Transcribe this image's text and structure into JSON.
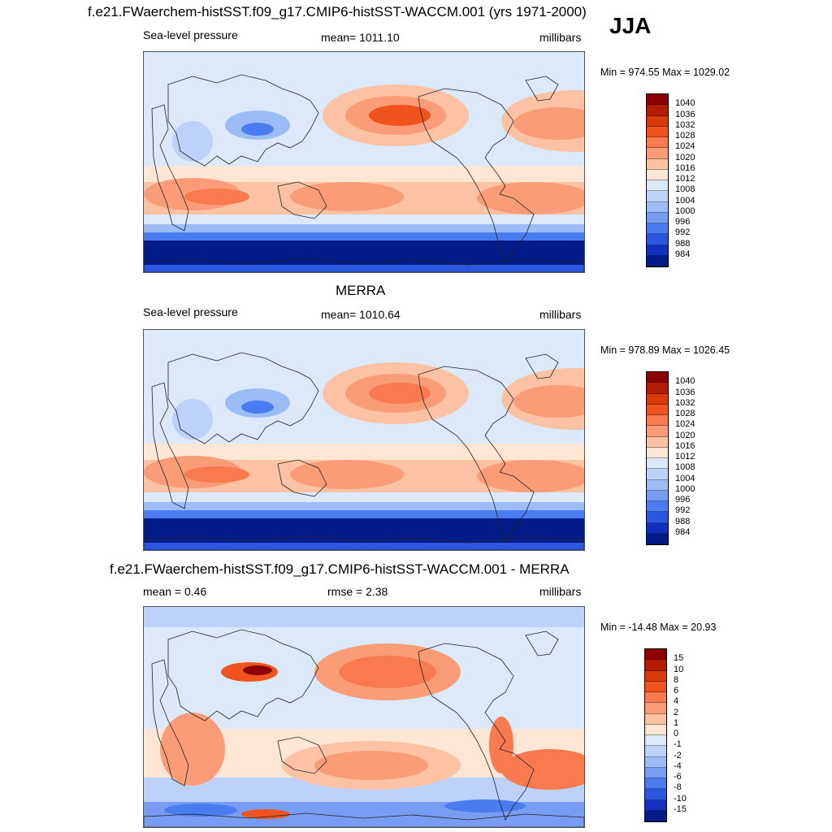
{
  "header": {
    "title": "f.e21.FWaerchem-histSST.f09_g17.CMIP6-histSST-WACCM.001 (yrs 1971-2000)",
    "season": "JJA"
  },
  "panels": [
    {
      "id": "model",
      "subtitle": "",
      "left": "Sea-level pressure",
      "center": "mean= 1011.10",
      "right": "millibars",
      "minmax": "Min = 974.55 Max = 1029.02",
      "colorbar": {
        "colors": [
          "#8c0000",
          "#b31c00",
          "#d93a0a",
          "#f0541e",
          "#f87a4e",
          "#fb9c78",
          "#fcc2a3",
          "#fde6d4",
          "#dbe9fb",
          "#bdd2fa",
          "#9bbcf7",
          "#779df3",
          "#4a7cef",
          "#2b57e0",
          "#1230be",
          "#021d8a"
        ],
        "labels": [
          "1040",
          "1036",
          "1032",
          "1028",
          "1024",
          "1020",
          "1016",
          "1012",
          "1008",
          "1004",
          "1000",
          "996",
          "992",
          "988",
          "984"
        ]
      }
    },
    {
      "id": "obs",
      "subtitle": "MERRA",
      "left": "Sea-level pressure",
      "center": "mean= 1010.64",
      "right": "millibars",
      "minmax": "Min = 978.89 Max = 1026.45",
      "colorbar": {
        "colors": [
          "#8c0000",
          "#b31c00",
          "#d93a0a",
          "#f0541e",
          "#f87a4e",
          "#fb9c78",
          "#fcc2a3",
          "#fde6d4",
          "#dbe9fb",
          "#bdd2fa",
          "#9bbcf7",
          "#779df3",
          "#4a7cef",
          "#2b57e0",
          "#1230be",
          "#021d8a"
        ],
        "labels": [
          "1040",
          "1036",
          "1032",
          "1028",
          "1024",
          "1020",
          "1016",
          "1012",
          "1008",
          "1004",
          "1000",
          "996",
          "992",
          "988",
          "984"
        ]
      }
    },
    {
      "id": "diff",
      "subtitle": "f.e21.FWaerchem-histSST.f09_g17.CMIP6-histSST-WACCM.001 - MERRA",
      "left": "mean =   0.46",
      "center": "rmse =   2.38",
      "right": "millibars",
      "minmax": "Min = -14.48 Max =  20.93",
      "colorbar": {
        "colors": [
          "#8c0000",
          "#b31c00",
          "#d93a0a",
          "#f0541e",
          "#f87a4e",
          "#fb9c78",
          "#fcc2a3",
          "#fde6d4",
          "#dbe9fb",
          "#bdd2fa",
          "#9bbcf7",
          "#779df3",
          "#4a7cef",
          "#2b57e0",
          "#1230be",
          "#021d8a"
        ],
        "labels": [
          "15",
          "10",
          "8",
          "6",
          "4",
          "2",
          "1",
          "0",
          "-1",
          "-2",
          "-4",
          "-6",
          "-8",
          "-10",
          "-15"
        ]
      }
    }
  ]
}
